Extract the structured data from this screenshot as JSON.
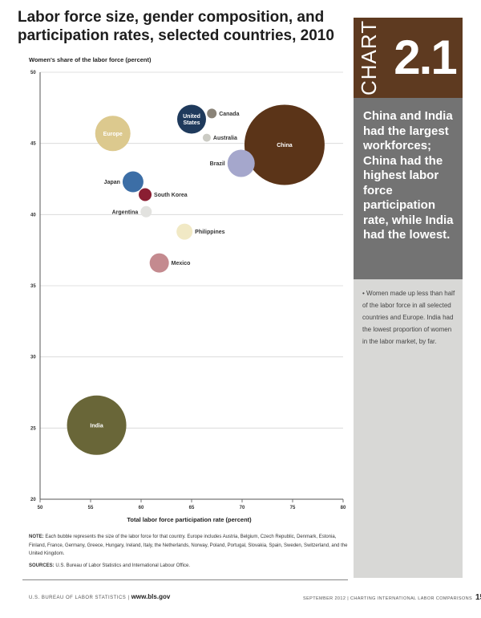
{
  "title": "Labor force size, gender composition, and participation rates, selected countries, 2010",
  "side": {
    "chart_word": "CHART",
    "chart_number": "2.1",
    "headline": "China and India had the largest workforces; China had the highest labor force participation rate, while India had the lowest.",
    "bullet": "Women made up less than half of the labor force in all selected countries and Europe. India had the lowest proportion of women in the labor market, by far."
  },
  "note_label": "NOTE:",
  "note_text": "Each bubble represents the size of the labor force for that country. Europe includes Austria, Belgium, Czech Republic, Denmark, Estonia, Finland, France, Germany, Greece, Hungary, Ireland, Italy, the Netherlands, Norway, Poland, Portugal, Slovakia, Spain, Sweden, Switzerland, and the United Kingdom.",
  "sources_label": "SOURCES:",
  "sources_text": "U.S. Bureau of Labor Statistics and International Labour Office.",
  "footer": {
    "left": "U.S. BUREAU OF LABOR STATISTICS",
    "sep": "|",
    "url": "www.bls.gov",
    "right": "SEPTEMBER 2012  |  CHARTING INTERNATIONAL LABOR COMPARISONS",
    "page": "15"
  },
  "chart_data": {
    "type": "scatter",
    "title": "Labor force size, gender composition, and participation rates, selected countries, 2010",
    "xlabel": "Total labor force participation rate (percent)",
    "ylabel": "Women's share of the labor force (percent)",
    "xlim": [
      50,
      80
    ],
    "ylim": [
      20,
      50
    ],
    "xticks": [
      "50",
      "55",
      "60",
      "65",
      "70",
      "75",
      "80"
    ],
    "yticks": [
      "50",
      "45",
      "40",
      "35",
      "30",
      "25",
      "20"
    ],
    "grid": "horizontal",
    "points": [
      {
        "label": "Canada",
        "x": 67.0,
        "y": 47.1,
        "size": 6,
        "color": "#8a8378",
        "label_pos": "right"
      },
      {
        "label": "United States",
        "x": 65.0,
        "y": 46.7,
        "size": 18,
        "color": "#1f3a5c",
        "label_pos": "inside"
      },
      {
        "label": "Europe",
        "x": 57.2,
        "y": 45.7,
        "size": 22,
        "color": "#dcc98e",
        "label_pos": "inside"
      },
      {
        "label": "Australia",
        "x": 66.5,
        "y": 45.4,
        "size": 5,
        "color": "#cbcbc4",
        "label_pos": "right"
      },
      {
        "label": "China",
        "x": 74.2,
        "y": 44.9,
        "size": 50,
        "color": "#5b3418",
        "label_pos": "inside"
      },
      {
        "label": "Brazil",
        "x": 69.9,
        "y": 43.6,
        "size": 17,
        "color": "#a5a7cc",
        "label_pos": "left"
      },
      {
        "label": "Japan",
        "x": 59.2,
        "y": 42.3,
        "size": 13,
        "color": "#3c6ea6",
        "label_pos": "left"
      },
      {
        "label": "South Korea",
        "x": 60.4,
        "y": 41.4,
        "size": 8,
        "color": "#8a1e32",
        "label_pos": "right"
      },
      {
        "label": "Argentina",
        "x": 60.5,
        "y": 40.2,
        "size": 7,
        "color": "#e2e2df",
        "label_pos": "left"
      },
      {
        "label": "Philippines",
        "x": 64.3,
        "y": 38.8,
        "size": 10,
        "color": "#f1e9c5",
        "label_pos": "right"
      },
      {
        "label": "Mexico",
        "x": 61.8,
        "y": 36.6,
        "size": 12,
        "color": "#c48a8f",
        "label_pos": "right"
      },
      {
        "label": "India",
        "x": 55.6,
        "y": 25.2,
        "size": 37,
        "color": "#696638",
        "label_pos": "inside"
      }
    ]
  }
}
